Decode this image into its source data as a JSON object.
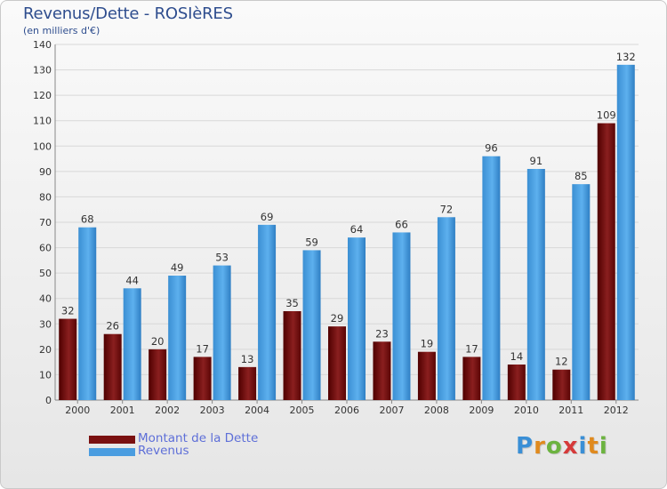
{
  "header": {
    "title": "Revenus/Dette - ROSIèRES",
    "subtitle": "(en milliers d'€)"
  },
  "legend": {
    "items": [
      {
        "label": "Montant de la Dette",
        "color": "#7a1010"
      },
      {
        "label": "Revenus",
        "color": "#4a9de0"
      }
    ]
  },
  "logo": {
    "text": "Proxiti",
    "letters": [
      {
        "char": "P",
        "color": "#3a8fd6"
      },
      {
        "char": "r",
        "color": "#e08a1e"
      },
      {
        "char": "o",
        "color": "#6cb33f"
      },
      {
        "char": "x",
        "color": "#d63a3a"
      },
      {
        "char": "i",
        "color": "#3a8fd6"
      },
      {
        "char": "t",
        "color": "#e08a1e"
      },
      {
        "char": "i",
        "color": "#6cb33f"
      }
    ]
  },
  "chart_data": {
    "type": "bar",
    "title": "Revenus/Dette - ROSIèRES",
    "ylabel": "(en milliers d'€)",
    "xlabel": "",
    "ylim": [
      0,
      140
    ],
    "ytick_step": 10,
    "grid": true,
    "categories": [
      "2000",
      "2001",
      "2002",
      "2003",
      "2004",
      "2005",
      "2006",
      "2007",
      "2008",
      "2009",
      "2010",
      "2011",
      "2012"
    ],
    "series": [
      {
        "name": "Montant de la Dette",
        "color": "#7a1010",
        "values": [
          32,
          26,
          20,
          17,
          13,
          35,
          29,
          23,
          19,
          17,
          14,
          12,
          109
        ]
      },
      {
        "name": "Revenus",
        "color": "#4a9de0",
        "values": [
          68,
          44,
          49,
          53,
          69,
          59,
          64,
          66,
          72,
          96,
          91,
          85,
          132
        ]
      }
    ]
  }
}
